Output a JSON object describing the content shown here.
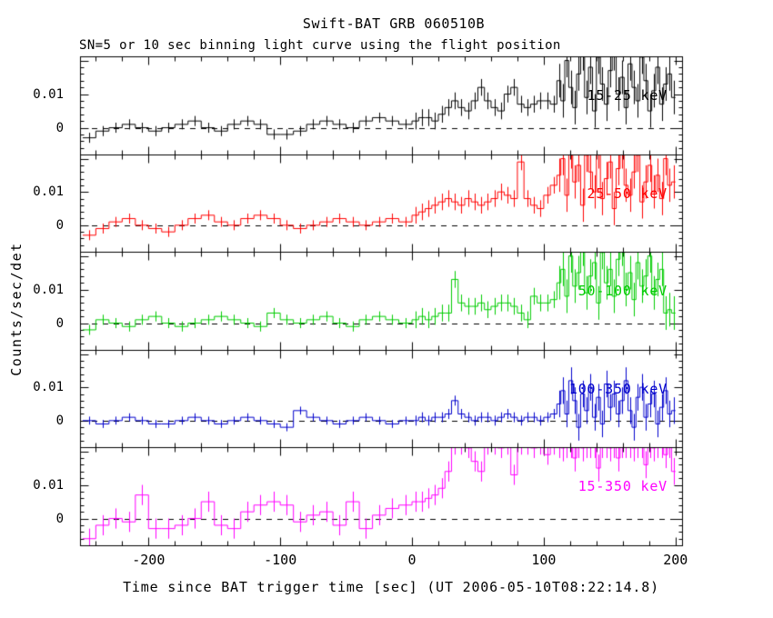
{
  "title": "Swift-BAT GRB 060510B",
  "subtitle": "SN=5 or 10 sec binning light curve using the flight position",
  "x_axis": {
    "label": "Time since BAT trigger time [sec] (UT 2006-05-10T08:22:14.8)",
    "major_ticks": [
      -200,
      -100,
      0,
      100,
      200
    ],
    "minor_step_sec": 20,
    "range_sec": [
      -252,
      205
    ]
  },
  "y_axis": {
    "label": "Counts/sec/det",
    "tick_labels": [
      "0.01",
      "0"
    ],
    "tick_values": [
      0.01,
      0
    ],
    "minor_step": 0.002,
    "range": [
      -0.0081,
      0.0211
    ]
  },
  "chart_data": {
    "type": "line",
    "style": "step-histogram-with-errorbars",
    "x_unit": "sec since BAT trigger",
    "y_unit": "counts/sec/det",
    "value_scale": 0.001,
    "zero_line": "dashed",
    "bin_edges_sec": [
      -250,
      -240,
      -230,
      -220,
      -210,
      -200,
      -190,
      -180,
      -170,
      -160,
      -150,
      -140,
      -130,
      -120,
      -110,
      -100,
      -90,
      -80,
      -70,
      -60,
      -50,
      -40,
      -30,
      -20,
      -10,
      0,
      5,
      10,
      15,
      20,
      25,
      30,
      35,
      40,
      45,
      50,
      55,
      60,
      65,
      70,
      75,
      80,
      85,
      90,
      95,
      100,
      105,
      110,
      113,
      116,
      119,
      122,
      125,
      128,
      131,
      134,
      137,
      140,
      143,
      146,
      149,
      152,
      155,
      158,
      161,
      164,
      167,
      170,
      173,
      176,
      179,
      182,
      185,
      188,
      191,
      194,
      197,
      200
    ],
    "segment_counts": [
      25,
      22,
      30
    ],
    "panels": [
      {
        "band": "15-25 keV",
        "color": "#000000",
        "errors_milli": [
          1.5,
          2.5,
          5
        ],
        "values_milli": [
          -3,
          -1,
          0,
          1,
          0,
          -1,
          0,
          1,
          2,
          0,
          -1,
          1,
          2,
          1,
          -2,
          -2,
          -1,
          1,
          2,
          1,
          0,
          2,
          3,
          2,
          1,
          2,
          3,
          3,
          2,
          4,
          6,
          8,
          6,
          5,
          8,
          12,
          8,
          6,
          5,
          10,
          12,
          7,
          6,
          7,
          8,
          8,
          7,
          14,
          8,
          20,
          12,
          6,
          16,
          22,
          9,
          18,
          5,
          21,
          13,
          7,
          17,
          22,
          10,
          15,
          6,
          19,
          12,
          8,
          21,
          14,
          5,
          11,
          18,
          7,
          13,
          16,
          9
        ]
      },
      {
        "band": "25-50 keV",
        "color": "#ff0000",
        "errors_milli": [
          1.5,
          2.5,
          5
        ],
        "values_milli": [
          -3,
          -1,
          1,
          2,
          0,
          -1,
          -2,
          0,
          2,
          3,
          1,
          0,
          2,
          3,
          2,
          0,
          -1,
          0,
          1,
          2,
          1,
          0,
          1,
          2,
          1,
          3,
          4,
          5,
          6,
          7,
          8,
          7,
          6,
          8,
          7,
          6,
          7,
          8,
          10,
          9,
          8,
          19,
          8,
          6,
          5,
          9,
          12,
          15,
          20,
          9,
          22,
          13,
          18,
          6,
          21,
          16,
          10,
          22,
          8,
          14,
          19,
          5,
          17,
          22,
          12,
          9,
          16,
          21,
          7,
          13,
          18,
          10,
          15,
          8,
          20,
          12,
          13
        ]
      },
      {
        "band": "50-100 keV",
        "color": "#00cc00",
        "errors_milli": [
          1.5,
          2.5,
          5
        ],
        "values_milli": [
          -2,
          1,
          0,
          -1,
          1,
          2,
          0,
          -1,
          0,
          1,
          2,
          1,
          0,
          -1,
          3,
          1,
          0,
          1,
          2,
          0,
          -1,
          1,
          2,
          1,
          0,
          1,
          2,
          1,
          2,
          3,
          3,
          13,
          6,
          5,
          5,
          6,
          4,
          5,
          6,
          6,
          5,
          3,
          1,
          8,
          6,
          6,
          7,
          12,
          16,
          8,
          20,
          11,
          15,
          22,
          9,
          14,
          18,
          6,
          21,
          12,
          16,
          8,
          19,
          22,
          10,
          15,
          7,
          18,
          11,
          14,
          20,
          9,
          13,
          16,
          3,
          4,
          3
        ]
      },
      {
        "band": "100-350 keV",
        "color": "#0000cc",
        "errors_milli": [
          1.2,
          1.5,
          4
        ],
        "values_milli": [
          0,
          -1,
          0,
          1,
          0,
          -1,
          -1,
          0,
          1,
          0,
          -1,
          0,
          1,
          0,
          -1,
          -2,
          3,
          1,
          0,
          -1,
          0,
          1,
          0,
          -1,
          0,
          0,
          1,
          0,
          1,
          1,
          2,
          6,
          2,
          1,
          0,
          1,
          1,
          0,
          1,
          2,
          1,
          0,
          1,
          1,
          0,
          1,
          2,
          5,
          9,
          2,
          12,
          6,
          -2,
          8,
          3,
          10,
          1,
          7,
          -1,
          11,
          4,
          8,
          2,
          6,
          12,
          3,
          -2,
          7,
          10,
          1,
          5,
          8,
          -1,
          4,
          9,
          2,
          3
        ]
      },
      {
        "band": "15-350 keV",
        "color": "#ff00ff",
        "errors_milli": [
          3,
          3,
          4
        ],
        "values_milli": [
          -6,
          -2,
          0,
          -1,
          7,
          -3,
          -3,
          -2,
          0,
          5,
          -2,
          -3,
          2,
          4,
          5,
          4,
          -1,
          1,
          2,
          -2,
          5,
          -3,
          1,
          3,
          4,
          5,
          5,
          6,
          7,
          9,
          14,
          22,
          22,
          21,
          17,
          14,
          22,
          22,
          21,
          22,
          13,
          22,
          22,
          21,
          22,
          19,
          22,
          22,
          21,
          22,
          22,
          18,
          22,
          21,
          22,
          22,
          22,
          15,
          22,
          22,
          21,
          22,
          18,
          22,
          22,
          22,
          21,
          22,
          22,
          16,
          22,
          21,
          22,
          22,
          19,
          22,
          14
        ]
      }
    ]
  }
}
